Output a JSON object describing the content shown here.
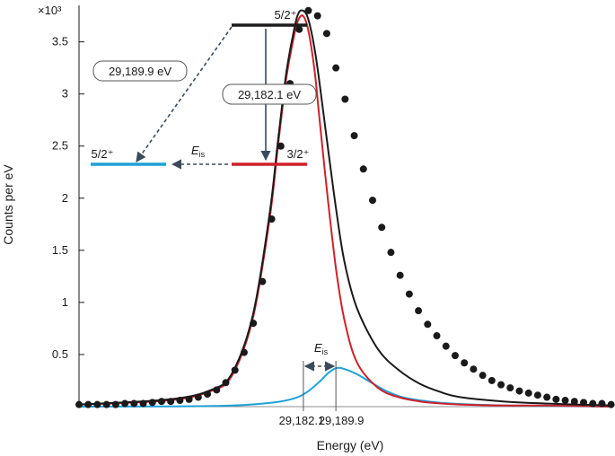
{
  "chart_data": {
    "type": "line",
    "xlabel": "Energy (eV)",
    "ylabel": "Counts per eV",
    "y_multiplier": "×10³",
    "ylim": [
      0,
      3.85
    ],
    "xlim": [
      29128.3,
      29256.4
    ],
    "y_ticks": [
      "0.5",
      "1",
      "1.5",
      "2",
      "2.5",
      "3",
      "3.5"
    ],
    "x_ticks": [
      "29,182.1",
      "29,189.9"
    ],
    "grid": false,
    "series": [
      {
        "kind": "fit-total",
        "color": "#1a1a1a",
        "x": [
          29128.3,
          29150,
          29160,
          29165,
          29170,
          29174,
          29176,
          29178,
          29180,
          29181,
          29182,
          29183,
          29184,
          29185,
          29186,
          29188,
          29190,
          29192,
          29195,
          29200,
          29205,
          29210,
          29215,
          29220,
          29230,
          29240,
          29256.4
        ],
        "values": [
          0.02,
          0.07,
          0.16,
          0.32,
          0.88,
          1.85,
          2.55,
          3.2,
          3.64,
          3.78,
          3.8,
          3.75,
          3.6,
          3.38,
          3.1,
          2.48,
          1.88,
          1.38,
          0.94,
          0.55,
          0.35,
          0.22,
          0.14,
          0.09,
          0.05,
          0.03,
          0.01
        ]
      },
      {
        "kind": "main-component",
        "color": "#d0202a",
        "x": [
          29128.3,
          29150,
          29160,
          29165,
          29170,
          29174,
          29176,
          29178,
          29180,
          29181,
          29182,
          29183,
          29184,
          29185,
          29186,
          29188,
          29190,
          29192,
          29195,
          29200,
          29205,
          29210,
          29215,
          29220,
          29230,
          29240,
          29256.4
        ],
        "values": [
          0.02,
          0.06,
          0.15,
          0.3,
          0.85,
          1.8,
          2.5,
          3.15,
          3.58,
          3.72,
          3.75,
          3.66,
          3.45,
          3.15,
          2.75,
          1.98,
          1.3,
          0.82,
          0.42,
          0.18,
          0.09,
          0.05,
          0.03,
          0.02,
          0.01,
          0.01,
          0.0
        ]
      },
      {
        "kind": "isomer-component",
        "color": "#1fa0d8",
        "x": [
          29128.3,
          29150,
          29165,
          29175,
          29180,
          29183,
          29186,
          29188,
          29190,
          29192,
          29195,
          29198,
          29202,
          29206,
          29212,
          29220,
          29230,
          29256.4
        ],
        "values": [
          0.0,
          0.003,
          0.01,
          0.04,
          0.08,
          0.14,
          0.24,
          0.32,
          0.37,
          0.36,
          0.31,
          0.24,
          0.15,
          0.09,
          0.05,
          0.025,
          0.012,
          0.0
        ]
      },
      {
        "kind": "data-points",
        "color": "#1a1a1a",
        "x": [
          29128.3,
          29130.5,
          29132.7,
          29134.9,
          29137.1,
          29139.3,
          29141.5,
          29143.7,
          29145.9,
          29148.1,
          29150.3,
          29152.5,
          29154.7,
          29156.9,
          29159.1,
          29161.3,
          29163.5,
          29165.7,
          29167.9,
          29170.1,
          29172.3,
          29174.5,
          29176.7,
          29178.9,
          29181.1,
          29183.3,
          29185.5,
          29187.7,
          29189.9,
          29192.1,
          29194.3,
          29196.5,
          29198.7,
          29200.9,
          29203.1,
          29205.3,
          29207.5,
          29209.7,
          29211.9,
          29214.1,
          29216.3,
          29218.5,
          29220.7,
          29222.9,
          29225.1,
          29227.3,
          29229.5,
          29231.7,
          29233.9,
          29236.1,
          29238.3,
          29240.5,
          29242.7,
          29244.9,
          29247.1,
          29249.3,
          29251.5,
          29253.7,
          29255.9
        ],
        "values": [
          0.02,
          0.02,
          0.02,
          0.02,
          0.02,
          0.03,
          0.03,
          0.03,
          0.04,
          0.05,
          0.05,
          0.06,
          0.07,
          0.09,
          0.12,
          0.16,
          0.23,
          0.35,
          0.52,
          0.8,
          1.2,
          1.8,
          2.5,
          3.1,
          3.62,
          3.8,
          3.75,
          3.58,
          3.25,
          2.95,
          2.6,
          2.28,
          1.98,
          1.72,
          1.48,
          1.26,
          1.08,
          0.92,
          0.79,
          0.68,
          0.58,
          0.49,
          0.42,
          0.36,
          0.3,
          0.25,
          0.21,
          0.18,
          0.15,
          0.13,
          0.11,
          0.09,
          0.07,
          0.06,
          0.05,
          0.04,
          0.03,
          0.03,
          0.02
        ]
      }
    ],
    "markers": [
      29182.1,
      29189.9
    ],
    "marker_arrow_label": "E",
    "marker_arrow_label_sub": "is"
  },
  "inset": {
    "upper_level": "5/2⁺",
    "lower_right_level": "3/2⁺",
    "lower_left_level": "5/2⁺",
    "transition_main": "29,182.1 eV",
    "transition_isomer": "29,189.9 eV",
    "shift_label": "E",
    "shift_sub": "is",
    "colors": {
      "upper": "#1a1a1a",
      "lower_right": "#d0202a",
      "lower_left": "#1fa0d8",
      "arrow": "#3a4a5a"
    }
  }
}
